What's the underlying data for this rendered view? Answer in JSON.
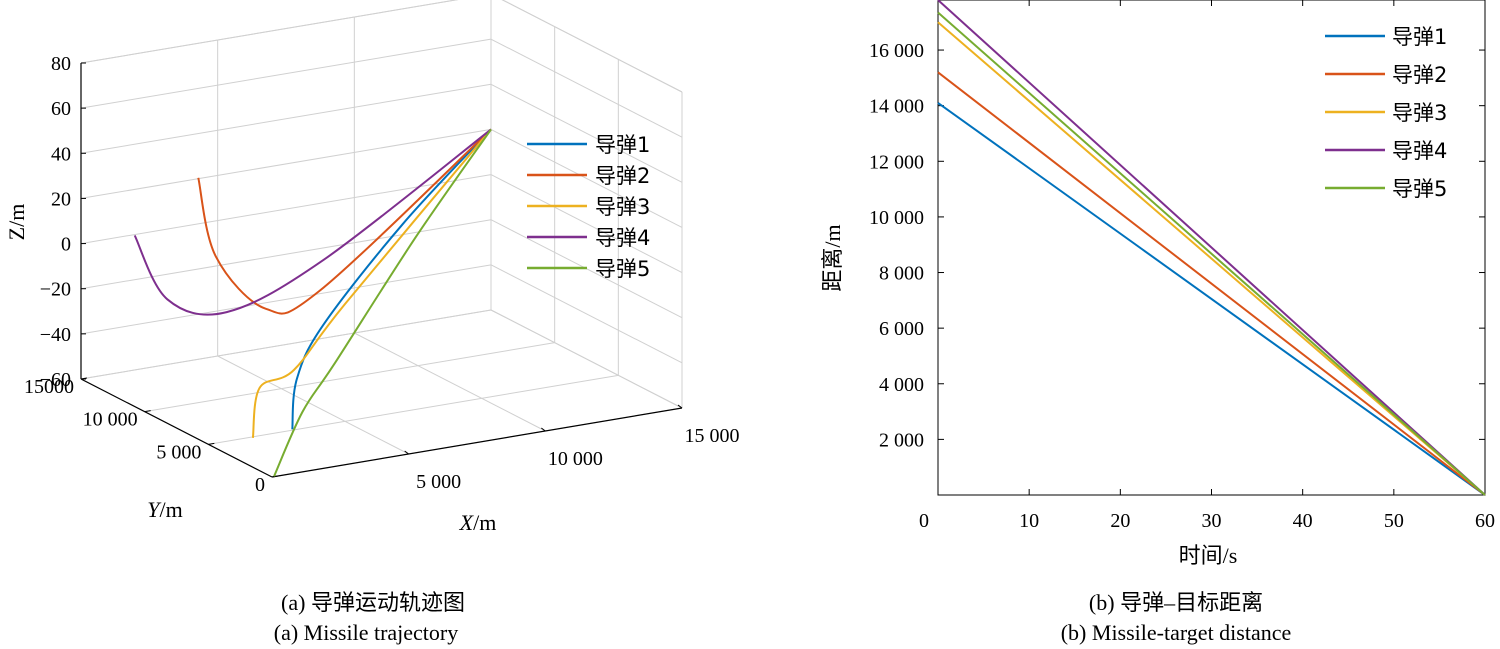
{
  "chart_data": [
    {
      "type": "line",
      "projection": "3d",
      "caption_cn": "(a) 导弹运动轨迹图",
      "caption_en": "(a) Missile trajectory",
      "axes": {
        "x": {
          "label_italic": "X",
          "label_unit": "/m",
          "ticks": [
            "5 000",
            "10 000",
            "15 000"
          ],
          "tick_values": [
            5000,
            10000,
            15000
          ],
          "range": [
            0,
            15000
          ]
        },
        "y": {
          "label_italic": "Y",
          "label_unit": "/m",
          "ticks": [
            "0",
            "5 000",
            "10 000",
            "15000"
          ],
          "tick_values": [
            0,
            5000,
            10000,
            15000
          ],
          "range": [
            0,
            15000
          ]
        },
        "z": {
          "label": "Z/m",
          "ticks": [
            "80",
            "60",
            "40",
            "20",
            "0",
            "−20",
            "−40",
            "−60"
          ],
          "tick_values": [
            80,
            60,
            40,
            20,
            0,
            -20,
            -40,
            -60
          ],
          "range": [
            -60,
            80
          ]
        }
      },
      "grid": true,
      "legend": {
        "placement": "right"
      },
      "series": [
        {
          "name": "导弹1",
          "color": "#0072BD",
          "points": [
            [
              1300,
              1200,
              -45
            ],
            [
              1700,
              1700,
              -25
            ],
            [
              3500,
              3500,
              -10
            ],
            [
              9000,
              9000,
              8
            ],
            [
              15000,
              15000,
              20
            ]
          ]
        },
        {
          "name": "导弹2",
          "color": "#D95319",
          "points": [
            [
              100,
              6000,
              55
            ],
            [
              600,
              5700,
              20
            ],
            [
              2200,
              5200,
              -5
            ],
            [
              5000,
              7000,
              -8
            ],
            [
              15000,
              15000,
              20
            ]
          ]
        },
        {
          "name": "导弹3",
          "color": "#EDB120",
          "points": [
            [
              0,
              1500,
              -47
            ],
            [
              200,
              1400,
              -25
            ],
            [
              1500,
              1500,
              -20
            ],
            [
              5000,
              5000,
              -8
            ],
            [
              15000,
              15000,
              20
            ]
          ]
        },
        {
          "name": "导弹4",
          "color": "#7E2F8E",
          "points": [
            [
              100,
              11000,
              15
            ],
            [
              1200,
              10800,
              -15
            ],
            [
              3000,
              10000,
              -22
            ],
            [
              7000,
              11000,
              -10
            ],
            [
              15000,
              15000,
              20
            ]
          ]
        },
        {
          "name": "导弹5",
          "color": "#77AC30",
          "points": [
            [
              100,
              50,
              -60
            ],
            [
              1300,
              400,
              -35
            ],
            [
              3000,
              1500,
              -20
            ],
            [
              9000,
              8000,
              5
            ],
            [
              15000,
              15000,
              20
            ]
          ]
        }
      ]
    },
    {
      "type": "line",
      "caption_cn": "(b) 导弹–目标距离",
      "caption_en": "(b) Missile-target distance",
      "xlabel": "时间/s",
      "ylabel": "距离/m",
      "xlim": [
        0,
        60
      ],
      "ylim": [
        0,
        17800
      ],
      "x_ticks": [
        0,
        10,
        20,
        30,
        40,
        50,
        60
      ],
      "y_ticks": [
        2000,
        4000,
        6000,
        8000,
        10000,
        12000,
        14000,
        16000
      ],
      "y_tick_labels": [
        "2 000",
        "4 000",
        "6 000",
        "8 000",
        "10 000",
        "12 000",
        "14 000",
        "16 000"
      ],
      "grid": false,
      "legend": {
        "placement": "top-right"
      },
      "series": [
        {
          "name": "导弹1",
          "color": "#0072BD",
          "x": [
            0,
            60
          ],
          "y": [
            14100,
            0
          ]
        },
        {
          "name": "导弹2",
          "color": "#D95319",
          "x": [
            0,
            60
          ],
          "y": [
            15200,
            0
          ]
        },
        {
          "name": "导弹3",
          "color": "#EDB120",
          "x": [
            0,
            60
          ],
          "y": [
            17000,
            0
          ]
        },
        {
          "name": "导弹4",
          "color": "#7E2F8E",
          "x": [
            0,
            60
          ],
          "y": [
            17800,
            0
          ]
        },
        {
          "name": "导弹5",
          "color": "#77AC30",
          "x": [
            0,
            60
          ],
          "y": [
            17350,
            0
          ]
        }
      ]
    }
  ]
}
